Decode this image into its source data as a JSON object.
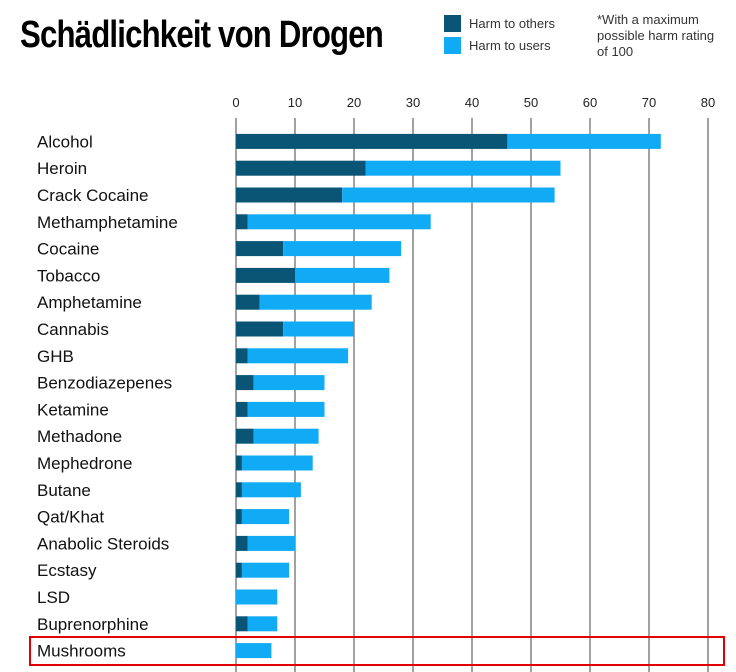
{
  "header": {
    "title": "Schädlichkeit von Drogen",
    "note": "*With a maximum\npossible harm rating\nof 100"
  },
  "legend": [
    {
      "label": "Harm to others",
      "color": "#0a5476"
    },
    {
      "label": "Harm to users",
      "color": "#11aaf5"
    }
  ],
  "highlight": {
    "category": "Mushrooms",
    "color": "#e00000"
  },
  "chart_data": {
    "type": "bar",
    "orientation": "horizontal",
    "stacked": true,
    "xlim": [
      0,
      80
    ],
    "xticks": [
      0,
      10,
      20,
      30,
      40,
      50,
      60,
      70,
      80
    ],
    "grid": true,
    "legend_position": "top",
    "categories": [
      "Alcohol",
      "Heroin",
      "Crack Cocaine",
      "Methamphetamine",
      "Cocaine",
      "Tobacco",
      "Amphetamine",
      "Cannabis",
      "GHB",
      "Benzodiazepenes",
      "Ketamine",
      "Methadone",
      "Mephedrone",
      "Butane",
      "Qat/Khat",
      "Anabolic Steroids",
      "Ecstasy",
      "LSD",
      "Buprenorphine",
      "Mushrooms"
    ],
    "series": [
      {
        "name": "Harm to others",
        "color": "#0a5476",
        "values": [
          46,
          22,
          18,
          2,
          8,
          10,
          4,
          8,
          2,
          3,
          2,
          3,
          1,
          1,
          1,
          2,
          1,
          0,
          2,
          0
        ]
      },
      {
        "name": "Harm to users",
        "color": "#11aaf5",
        "values": [
          26,
          33,
          36,
          31,
          20,
          16,
          19,
          12,
          17,
          12,
          13,
          11,
          12,
          10,
          8,
          8,
          8,
          7,
          5,
          6
        ]
      }
    ]
  }
}
